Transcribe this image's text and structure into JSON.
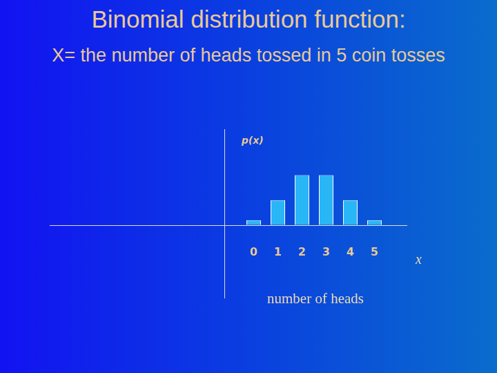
{
  "chart_data": {
    "type": "bar",
    "title": "Binomial distribution function:",
    "subtitle": "X= the number of heads tossed in 5 coin tosses",
    "x_label": "number of heads",
    "y_label": "p(x)",
    "annotations": [
      "x"
    ],
    "categories": [
      "0",
      "1",
      "2",
      "3",
      "4",
      "5"
    ],
    "values": [
      0.031,
      0.156,
      0.313,
      0.313,
      0.156,
      0.031
    ],
    "color": "#29b6f6",
    "ylim": [
      0,
      0.6
    ],
    "grid": false,
    "tick_labels": "x"
  }
}
